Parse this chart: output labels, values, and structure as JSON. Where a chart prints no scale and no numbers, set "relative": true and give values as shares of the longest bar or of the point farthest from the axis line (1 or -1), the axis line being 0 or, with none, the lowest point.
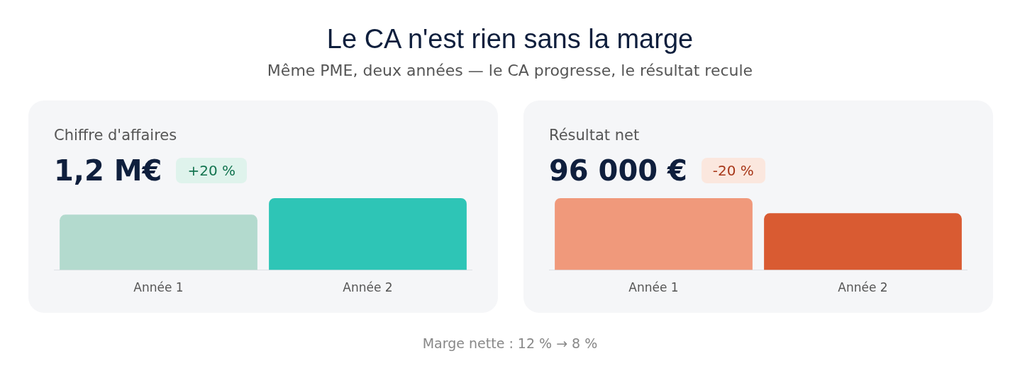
{
  "chart_data": [
    {
      "type": "other",
      "title": "Le CA n'est rien sans la marge",
      "subtitle": "Même PME, deux années — le CA progresse, le résultat recule",
      "annotations": [
        "Marge nette : 12 % → 8 %"
      ]
    },
    {
      "type": "bar",
      "title": "Chiffre d'affaires",
      "relative": true,
      "categories": [
        "Année 1",
        "Année 2"
      ],
      "values": [
        0.77,
        1
      ],
      "colors": [
        "#b3dace",
        "#2ec5b6"
      ],
      "annotations": [
        "1,2 M€",
        "+20 %"
      ]
    },
    {
      "type": "bar",
      "title": "Résultat net",
      "relative": true,
      "categories": [
        "Année 1",
        "Année 2"
      ],
      "values": [
        1,
        0.79
      ],
      "colors": [
        "#f0997b",
        "#d95b32"
      ],
      "annotations": [
        "96 000 €",
        "-20 %"
      ]
    }
  ]
}
